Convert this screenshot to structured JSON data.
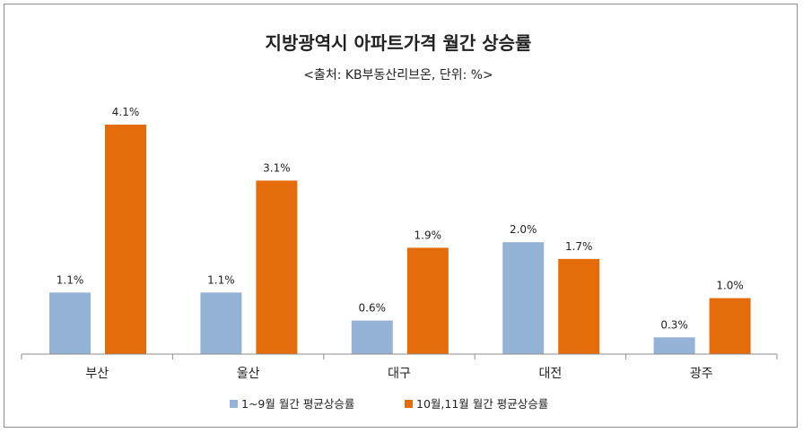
{
  "chart_data": {
    "type": "bar",
    "title": "지방광역시 아파트가격 월간 상승률",
    "subtitle": "<출처: KB부동산리브온, 단위: %>",
    "categories": [
      "부산",
      "울산",
      "대구",
      "대전",
      "광주"
    ],
    "series": [
      {
        "name": "1~9월 월간 평균상승률",
        "values": [
          1.1,
          1.1,
          0.6,
          2.0,
          0.3
        ],
        "labels": [
          "1.1%",
          "1.1%",
          "0.6%",
          "2.0%",
          "0.3%"
        ],
        "color": "#95b3d7"
      },
      {
        "name": "10월,11월 월간 평균상승률",
        "values": [
          4.1,
          3.1,
          1.9,
          1.7,
          1.0
        ],
        "labels": [
          "4.1%",
          "3.1%",
          "1.9%",
          "1.7%",
          "1.0%"
        ],
        "color": "#e46c0a"
      }
    ],
    "ylim": [
      0,
      4.1
    ],
    "grid": false,
    "legend": "bottom"
  }
}
